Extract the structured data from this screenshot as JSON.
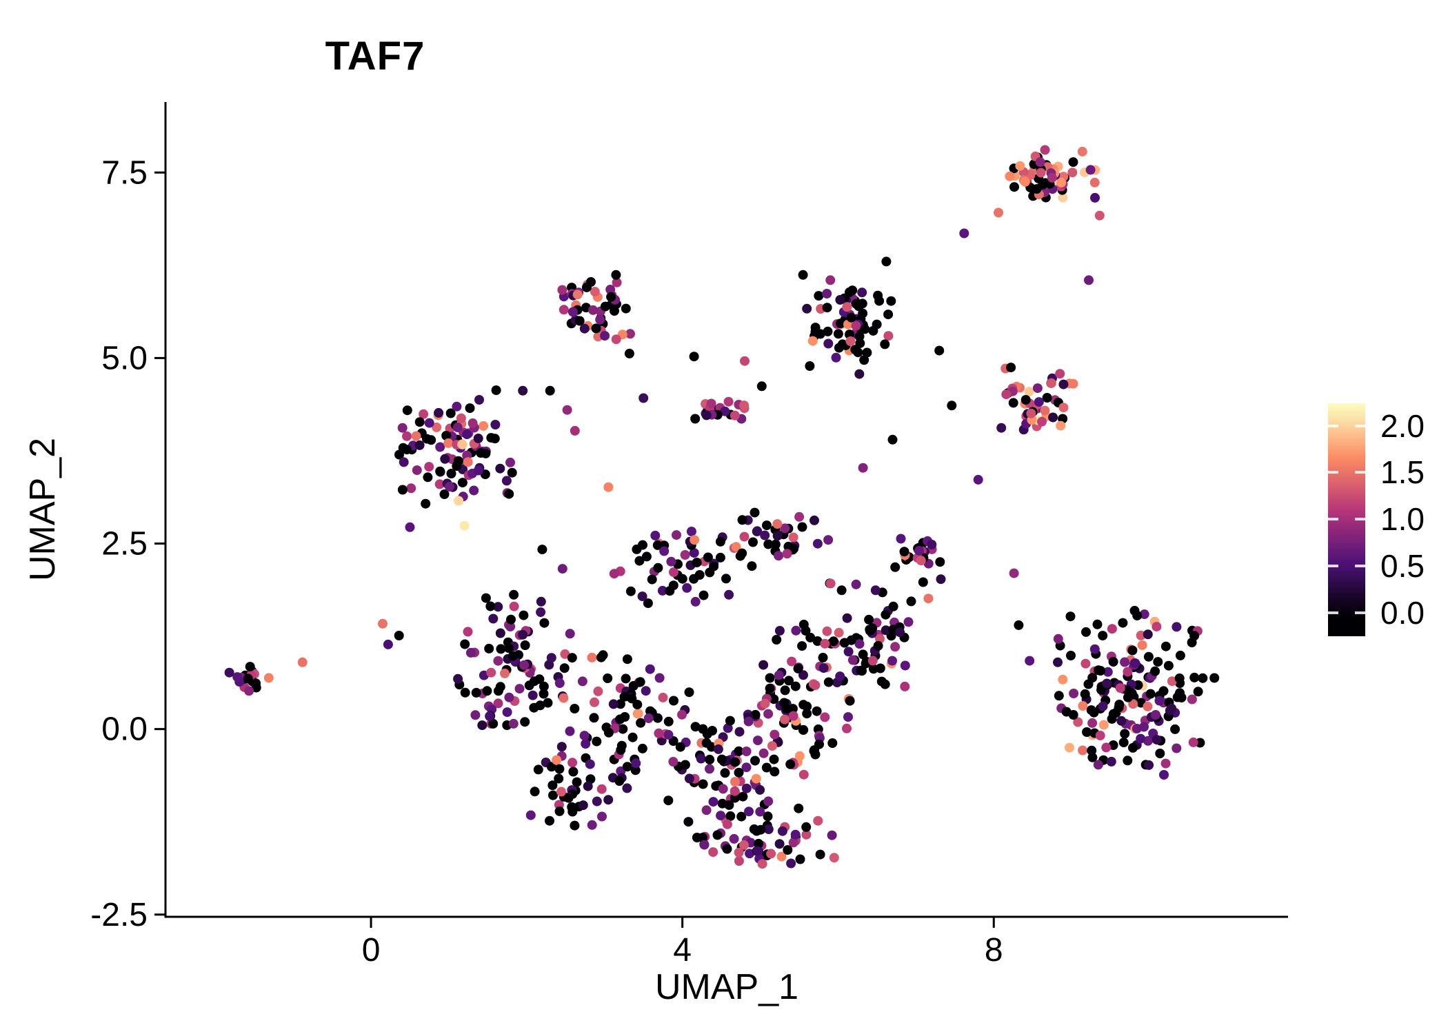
{
  "title": "TAF7",
  "axes": {
    "xlabel": "UMAP_1",
    "ylabel": "UMAP_2",
    "x_ticks": [
      {
        "value": 0,
        "label": "0"
      },
      {
        "value": 4,
        "label": "4"
      },
      {
        "value": 8,
        "label": "8"
      }
    ],
    "y_ticks": [
      {
        "value": 7.5,
        "label": "7.5"
      },
      {
        "value": 5.0,
        "label": "5.0"
      },
      {
        "value": 2.5,
        "label": "2.5"
      },
      {
        "value": 0.0,
        "label": "0.0"
      },
      {
        "value": -2.5,
        "label": "-2.5"
      }
    ],
    "xlim": [
      -2.64,
      11.78
    ],
    "ylim": [
      -2.53,
      8.45
    ]
  },
  "legend": {
    "ticks": [
      {
        "value": 2.0,
        "label": "2.0"
      },
      {
        "value": 1.5,
        "label": "1.5"
      },
      {
        "value": 1.0,
        "label": "1.0"
      },
      {
        "value": 0.5,
        "label": "0.5"
      },
      {
        "value": 0.0,
        "label": "0.0"
      }
    ],
    "bar_range": [
      -0.25,
      2.24
    ]
  },
  "colormap": {
    "name": "magma",
    "stops": [
      "#000004",
      "#51127c",
      "#b73779",
      "#fc8961",
      "#fcfdbf"
    ],
    "value_domain": [
      0,
      2.2
    ]
  },
  "chart_data": {
    "type": "scatter",
    "title": "TAF7",
    "xlabel": "UMAP_1",
    "ylabel": "UMAP_2",
    "xlim": [
      -2.64,
      11.78
    ],
    "ylim": [
      -2.53,
      8.45
    ],
    "x_tick_values": [
      0,
      4,
      8
    ],
    "y_tick_values": [
      -2.5,
      0.0,
      2.5,
      5.0,
      7.5
    ],
    "color_scale": {
      "label_values": [
        0.0,
        0.5,
        1.0,
        1.5,
        2.0
      ],
      "min": 0,
      "max": 2.2,
      "palette": "magma"
    },
    "point_radius_px": 7,
    "seed": 11,
    "value_levels": {
      "zero": [
        0,
        0
      ],
      "low": [
        0.25,
        0.85
      ],
      "mid": [
        0.9,
        1.35
      ],
      "high": [
        1.4,
        1.75
      ],
      "max": [
        1.8,
        2.15
      ]
    },
    "clusters": [
      {
        "name": "isolated-left",
        "center": [
          -1.55,
          0.68
        ],
        "spread": [
          0.3,
          0.24
        ],
        "count": 17,
        "mix": {
          "zero": 0.4,
          "low": 0.35,
          "mid": 0.15,
          "high": 0.1,
          "max": 0
        }
      },
      {
        "name": "upper-left",
        "center": [
          1.15,
          3.8
        ],
        "spread": [
          0.85,
          0.85
        ],
        "count": 95,
        "mix": {
          "zero": 0.38,
          "low": 0.3,
          "mid": 0.2,
          "high": 0.1,
          "max": 0.02
        }
      },
      {
        "name": "top-middle",
        "center": [
          2.9,
          5.65
        ],
        "spread": [
          0.55,
          0.5
        ],
        "count": 45,
        "mix": {
          "zero": 0.35,
          "low": 0.3,
          "mid": 0.22,
          "high": 0.13,
          "max": 0
        }
      },
      {
        "name": "mid-small",
        "center": [
          4.45,
          4.3
        ],
        "spread": [
          0.42,
          0.18
        ],
        "count": 22,
        "mix": {
          "zero": 0.35,
          "low": 0.3,
          "mid": 0.25,
          "high": 0.1,
          "max": 0
        }
      },
      {
        "name": "top-center-right",
        "center": [
          6.15,
          5.4
        ],
        "spread": [
          0.6,
          0.65
        ],
        "count": 70,
        "mix": {
          "zero": 0.55,
          "low": 0.22,
          "mid": 0.13,
          "high": 0.1,
          "max": 0
        }
      },
      {
        "name": "top-right",
        "center": [
          8.7,
          7.45
        ],
        "spread": [
          0.65,
          0.4
        ],
        "count": 58,
        "mix": {
          "zero": 0.28,
          "low": 0.18,
          "mid": 0.24,
          "high": 0.22,
          "max": 0.08
        }
      },
      {
        "name": "right-middle",
        "center": [
          8.6,
          4.4
        ],
        "spread": [
          0.52,
          0.5
        ],
        "count": 45,
        "mix": {
          "zero": 0.3,
          "low": 0.27,
          "mid": 0.23,
          "high": 0.15,
          "max": 0.05
        }
      },
      {
        "name": "right-lower",
        "center": [
          9.75,
          0.45
        ],
        "spread": [
          1.15,
          1.3
        ],
        "count": 165,
        "mix": {
          "zero": 0.45,
          "low": 0.28,
          "mid": 0.17,
          "high": 0.08,
          "max": 0.02
        }
      },
      {
        "name": "main-1",
        "center": [
          1.85,
          0.8
        ],
        "spread": [
          0.85,
          1.05
        ],
        "count": 85,
        "mix": {
          "zero": 0.5,
          "low": 0.32,
          "mid": 0.13,
          "high": 0.05,
          "max": 0
        }
      },
      {
        "name": "main-2",
        "center": [
          3.2,
          0.1
        ],
        "spread": [
          0.9,
          0.95
        ],
        "count": 75,
        "mix": {
          "zero": 0.52,
          "low": 0.3,
          "mid": 0.13,
          "high": 0.05,
          "max": 0
        }
      },
      {
        "name": "main-3",
        "center": [
          4.6,
          -0.5
        ],
        "spread": [
          0.95,
          0.85
        ],
        "count": 85,
        "mix": {
          "zero": 0.5,
          "low": 0.3,
          "mid": 0.15,
          "high": 0.05,
          "max": 0
        }
      },
      {
        "name": "main-4",
        "center": [
          5.6,
          0.4
        ],
        "spread": [
          0.85,
          1.1
        ],
        "count": 85,
        "mix": {
          "zero": 0.48,
          "low": 0.3,
          "mid": 0.17,
          "high": 0.05,
          "max": 0
        }
      },
      {
        "name": "main-5",
        "center": [
          4.9,
          -1.5
        ],
        "spread": [
          1.1,
          0.45
        ],
        "count": 55,
        "mix": {
          "zero": 0.5,
          "low": 0.3,
          "mid": 0.15,
          "high": 0.05,
          "max": 0
        }
      },
      {
        "name": "main-6",
        "center": [
          6.4,
          1.3
        ],
        "spread": [
          0.7,
          0.85
        ],
        "count": 55,
        "mix": {
          "zero": 0.5,
          "low": 0.28,
          "mid": 0.16,
          "high": 0.06,
          "max": 0
        }
      },
      {
        "name": "main-7",
        "center": [
          3.9,
          2.1
        ],
        "spread": [
          0.95,
          0.6
        ],
        "count": 48,
        "mix": {
          "zero": 0.45,
          "low": 0.3,
          "mid": 0.17,
          "high": 0.08,
          "max": 0
        }
      },
      {
        "name": "main-8",
        "center": [
          5.2,
          2.6
        ],
        "spread": [
          0.8,
          0.45
        ],
        "count": 36,
        "mix": {
          "zero": 0.45,
          "low": 0.3,
          "mid": 0.18,
          "high": 0.07,
          "max": 0
        }
      },
      {
        "name": "main-9",
        "center": [
          2.5,
          -0.85
        ],
        "spread": [
          0.6,
          0.55
        ],
        "count": 35,
        "mix": {
          "zero": 0.5,
          "low": 0.3,
          "mid": 0.15,
          "high": 0.05,
          "max": 0
        }
      },
      {
        "name": "main-10",
        "center": [
          6.95,
          2.35
        ],
        "spread": [
          0.45,
          0.5
        ],
        "count": 24,
        "mix": {
          "zero": 0.35,
          "low": 0.25,
          "mid": 0.2,
          "high": 0.15,
          "max": 0.05
        }
      }
    ],
    "extra_points": [
      [
        -0.88,
        0.9,
        1.5
      ],
      [
        7.62,
        6.68,
        0.6
      ],
      [
        9.22,
        6.05,
        0.7
      ],
      [
        4.15,
        5.02,
        0.0
      ],
      [
        3.5,
        4.46,
        0.4
      ],
      [
        2.52,
        4.3,
        0.9
      ],
      [
        2.3,
        4.56,
        0.0
      ],
      [
        4.8,
        4.96,
        1.2
      ],
      [
        5.02,
        4.62,
        0.0
      ],
      [
        3.05,
        3.26,
        1.6
      ],
      [
        0.15,
        1.42,
        1.5
      ],
      [
        0.36,
        1.26,
        0.0
      ],
      [
        0.22,
        1.14,
        0.5
      ],
      [
        7.46,
        4.36,
        0.0
      ],
      [
        7.8,
        3.36,
        0.6
      ],
      [
        7.3,
        5.1,
        0.0
      ],
      [
        8.15,
        4.86,
        1.4
      ],
      [
        6.32,
        3.52,
        0.8
      ],
      [
        6.7,
        3.9,
        0.0
      ],
      [
        2.2,
        2.42,
        0.0
      ],
      [
        2.46,
        2.16,
        0.7
      ],
      [
        7.16,
        1.76,
        1.5
      ],
      [
        7.32,
        2.02,
        0.3
      ],
      [
        8.26,
        2.1,
        0.9
      ],
      [
        3.32,
        5.06,
        0.0
      ],
      [
        1.95,
        4.56,
        0.3
      ],
      [
        2.62,
        4.02,
        1.0
      ],
      [
        8.06,
        6.96,
        1.5
      ],
      [
        9.36,
        6.92,
        1.3
      ],
      [
        9.3,
        7.16,
        0.5
      ],
      [
        6.62,
        6.3,
        0.0
      ],
      [
        8.32,
        1.4,
        0.0
      ],
      [
        8.46,
        0.92,
        0.6
      ],
      [
        0.5,
        2.72,
        0.6
      ],
      [
        1.2,
        2.74,
        2.1
      ],
      [
        5.55,
        6.12,
        0.0
      ],
      [
        5.9,
        6.05,
        0.9
      ]
    ]
  }
}
